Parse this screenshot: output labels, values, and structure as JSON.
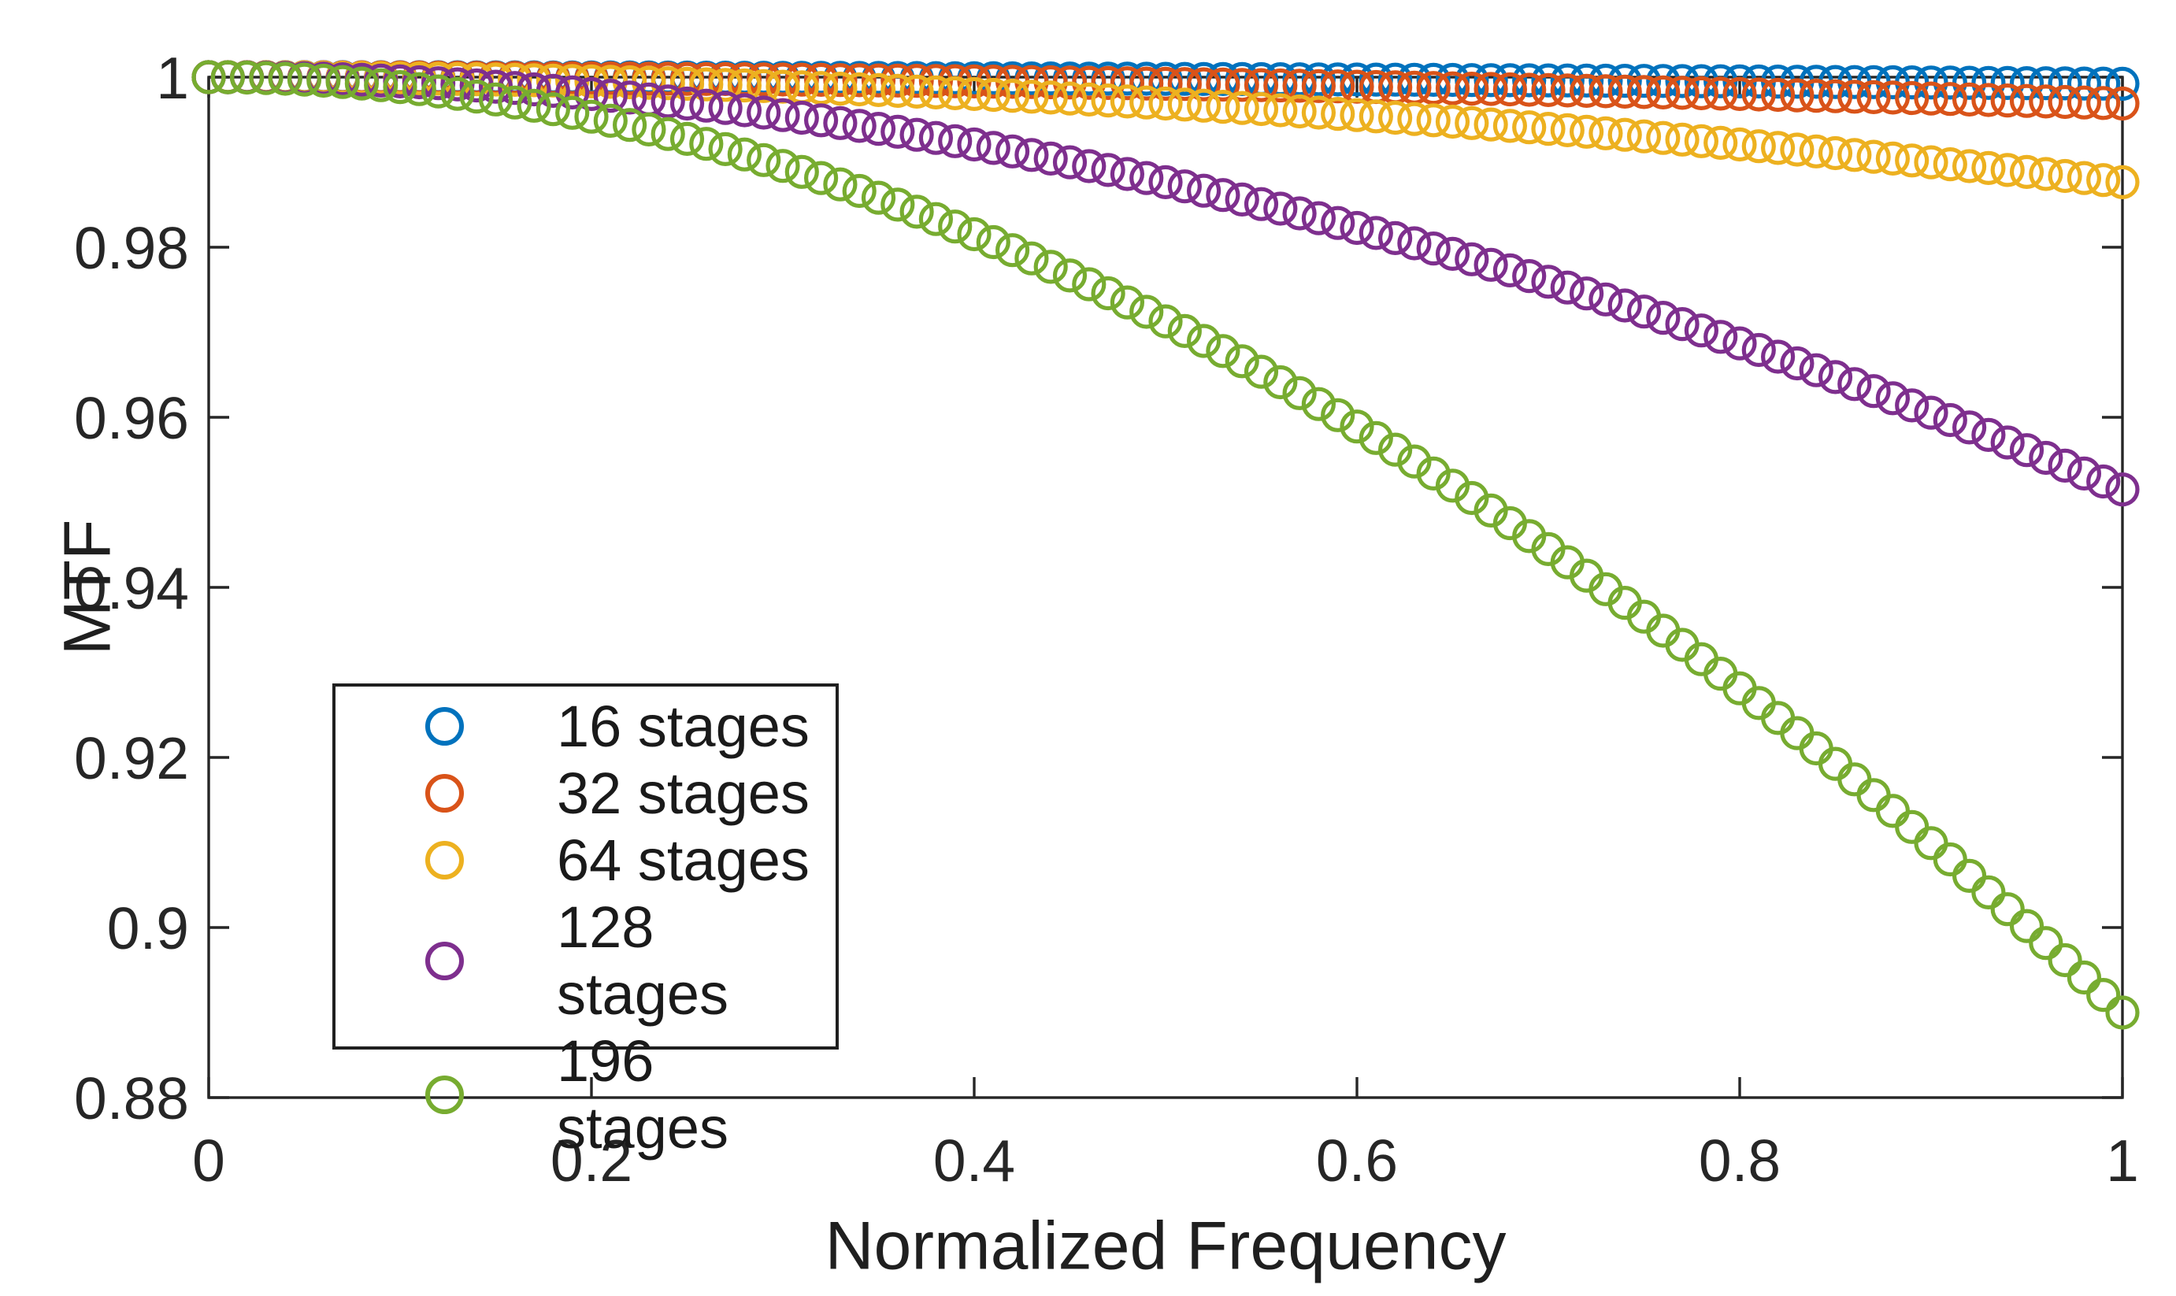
{
  "chart_data": {
    "type": "scatter",
    "title": "",
    "xlabel": "Normalized Frequency",
    "ylabel": "MTF",
    "xlim": [
      0,
      1
    ],
    "ylim": [
      0.88,
      1
    ],
    "xtick_values": [
      0,
      0.2,
      0.4,
      0.6,
      0.8,
      1
    ],
    "xtick_labels": [
      "0",
      "0.2",
      "0.4",
      "0.6",
      "0.8",
      "1"
    ],
    "ytick_values": [
      0.88,
      0.9,
      0.92,
      0.94,
      0.96,
      0.98,
      1
    ],
    "ytick_labels": [
      "0.88",
      "0.9",
      "0.92",
      "0.94",
      "0.96",
      "0.98",
      "1"
    ],
    "grid": false,
    "box": true,
    "tick_direction": "in",
    "axis_color": "#262626",
    "text_color": "#1f1f1f",
    "background_color": "#ffffff",
    "marker_style": "open-circle",
    "points_per_series": 101,
    "x_start": 0,
    "x_step": 0.01,
    "model_note": "MTF(f) = exp(-k * f^2); markers every 0.01 in normalized frequency",
    "legend": {
      "position": "lower-left-inside",
      "border_color": "#1f1f1f",
      "background": "#ffffff"
    },
    "series": [
      {
        "name": "16 stages",
        "color": "#0072BD",
        "decay_k": 0.000777,
        "sample_x": [
          0,
          0.1,
          0.2,
          0.3,
          0.4,
          0.5,
          0.6,
          0.7,
          0.8,
          0.9,
          1
        ],
        "sample_mtf": [
          1,
          0.99999,
          0.99997,
          0.99993,
          0.99988,
          0.99981,
          0.99972,
          0.99962,
          0.9995,
          0.99937,
          0.99922
        ]
      },
      {
        "name": "32 stages",
        "color": "#D95319",
        "decay_k": 0.003106,
        "sample_x": [
          0,
          0.1,
          0.2,
          0.3,
          0.4,
          0.5,
          0.6,
          0.7,
          0.8,
          0.9,
          1
        ],
        "sample_mtf": [
          1,
          0.99997,
          0.99988,
          0.99972,
          0.9995,
          0.99922,
          0.99888,
          0.99848,
          0.99801,
          0.99749,
          0.9969
        ]
      },
      {
        "name": "64 stages",
        "color": "#EDB120",
        "decay_k": 0.012425,
        "sample_x": [
          0,
          0.1,
          0.2,
          0.3,
          0.4,
          0.5,
          0.6,
          0.7,
          0.8,
          0.9,
          1
        ],
        "sample_mtf": [
          1,
          0.99988,
          0.9995,
          0.99888,
          0.99801,
          0.9969,
          0.99554,
          0.99393,
          0.99208,
          0.98999,
          0.98765
        ]
      },
      {
        "name": "128 stages",
        "color": "#7E2F8E",
        "decay_k": 0.0497,
        "sample_x": [
          0,
          0.1,
          0.2,
          0.3,
          0.4,
          0.5,
          0.6,
          0.7,
          0.8,
          0.9,
          1
        ],
        "sample_mtf": [
          1,
          0.9995,
          0.99801,
          0.99554,
          0.99208,
          0.98765,
          0.98227,
          0.97594,
          0.96869,
          0.96054,
          0.95152
        ]
      },
      {
        "name": "196 stages",
        "color": "#77AC30",
        "decay_k": 0.11653,
        "sample_x": [
          0,
          0.1,
          0.2,
          0.3,
          0.4,
          0.5,
          0.6,
          0.7,
          0.8,
          0.9,
          1
        ],
        "sample_mtf": [
          1,
          0.99884,
          0.99535,
          0.98957,
          0.98153,
          0.97129,
          0.95892,
          0.9445,
          0.92813,
          0.90993,
          0.89
        ]
      }
    ]
  }
}
